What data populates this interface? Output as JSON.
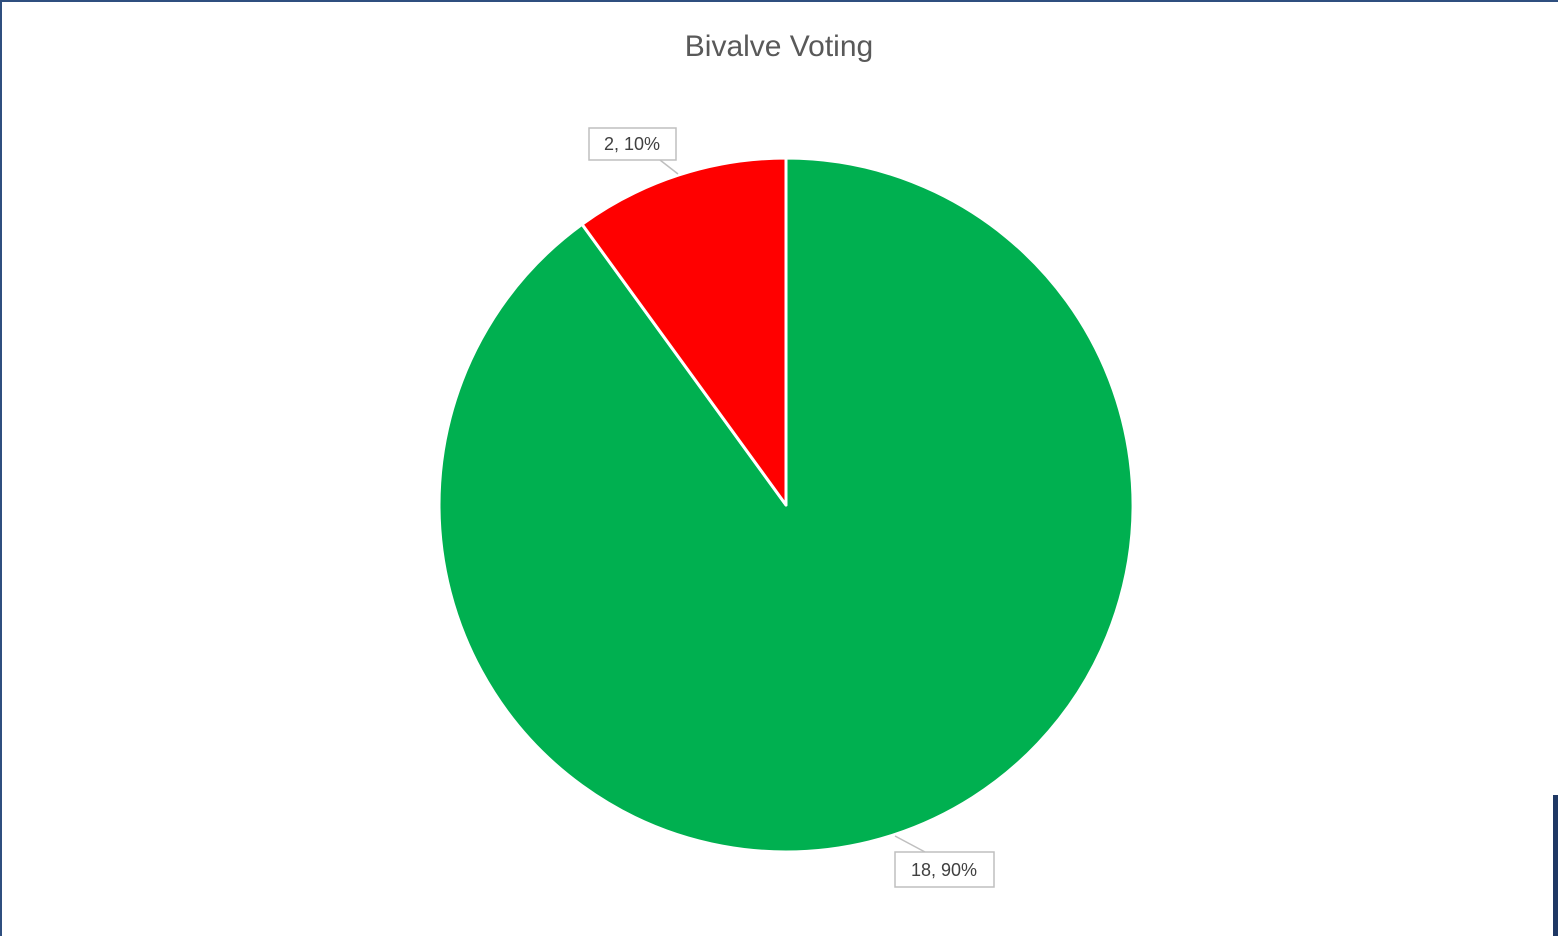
{
  "chart_data": {
    "type": "pie",
    "title": "Bivalve Voting",
    "slices": [
      {
        "value": 18,
        "percent": "90%",
        "label": "18, 90%",
        "color": "#00b050"
      },
      {
        "value": 2,
        "percent": "10%",
        "label": "2, 10%",
        "color": "#ff0000"
      }
    ],
    "legend": "none",
    "slice_border_color": "#ffffff",
    "label_border_color": "#bfbfbf"
  }
}
